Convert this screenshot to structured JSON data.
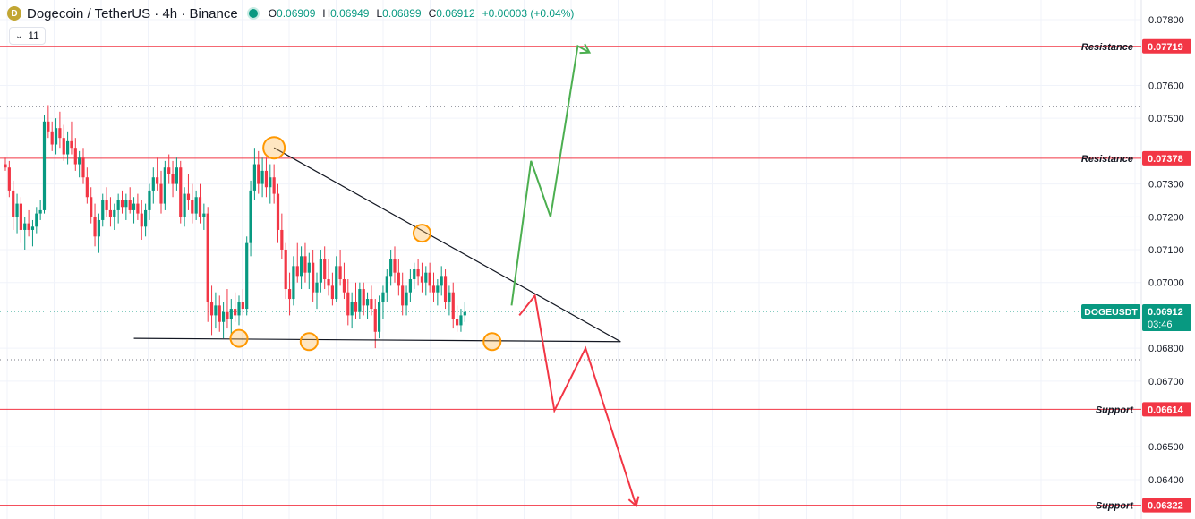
{
  "header": {
    "logo_icon": "dogecoin-logo-icon",
    "title": "Dogecoin / TetherUS · 4h · Binance",
    "ohlc": {
      "o_label": "O",
      "o": "0.06909",
      "h_label": "H",
      "h": "0.06949",
      "l_label": "L",
      "l": "0.06899",
      "c_label": "C",
      "c": "0.06912",
      "change": "+0.00003 (+0.04%)"
    },
    "indicators_count": "11"
  },
  "chart_data": {
    "type": "candlestick",
    "symbol": "DOGEUSDT",
    "last_price": "0.06912",
    "countdown": "03:46",
    "ylim": [
      0.0628,
      0.0786
    ],
    "y_ticks": [
      "0.07800",
      "0.07600",
      "0.07500",
      "0.07300",
      "0.07200",
      "0.07100",
      "0.07000",
      "0.06800",
      "0.06700",
      "0.06500",
      "0.06400"
    ],
    "levels": [
      {
        "label": "Resistance",
        "value": "0.07719"
      },
      {
        "label": "Resistance",
        "value": "0.07378"
      },
      {
        "label": "Support",
        "value": "0.06614"
      },
      {
        "label": "Support",
        "value": "0.06322"
      }
    ],
    "dotted_levels": [
      0.07535,
      0.06765
    ],
    "candles": [
      [
        0.0736,
        0.0738,
        0.0734,
        0.0735
      ],
      [
        0.0735,
        0.0737,
        0.0726,
        0.0728
      ],
      [
        0.0728,
        0.0731,
        0.0716,
        0.072
      ],
      [
        0.072,
        0.0727,
        0.0715,
        0.0724
      ],
      [
        0.0724,
        0.0726,
        0.0712,
        0.0716
      ],
      [
        0.0716,
        0.072,
        0.071,
        0.0718
      ],
      [
        0.0718,
        0.0722,
        0.0714,
        0.0716
      ],
      [
        0.0716,
        0.0719,
        0.0711,
        0.0717
      ],
      [
        0.0717,
        0.0723,
        0.0715,
        0.0721
      ],
      [
        0.0721,
        0.0725,
        0.0719,
        0.0722
      ],
      [
        0.0722,
        0.0751,
        0.0721,
        0.0749
      ],
      [
        0.0749,
        0.0754,
        0.0744,
        0.0746
      ],
      [
        0.0746,
        0.0749,
        0.074,
        0.0742
      ],
      [
        0.0742,
        0.075,
        0.0739,
        0.0747
      ],
      [
        0.0747,
        0.0752,
        0.0741,
        0.0744
      ],
      [
        0.0744,
        0.0748,
        0.0737,
        0.0739
      ],
      [
        0.0739,
        0.0746,
        0.0736,
        0.0743
      ],
      [
        0.0743,
        0.0749,
        0.0739,
        0.0741
      ],
      [
        0.0741,
        0.0744,
        0.0734,
        0.0736
      ],
      [
        0.0736,
        0.074,
        0.0732,
        0.0738
      ],
      [
        0.0738,
        0.0741,
        0.073,
        0.0732
      ],
      [
        0.0732,
        0.0735,
        0.0724,
        0.0726
      ],
      [
        0.0726,
        0.0729,
        0.0718,
        0.072
      ],
      [
        0.072,
        0.0724,
        0.0711,
        0.0714
      ],
      [
        0.0714,
        0.0721,
        0.0709,
        0.0719
      ],
      [
        0.0719,
        0.0727,
        0.0717,
        0.0725
      ],
      [
        0.0725,
        0.0729,
        0.072,
        0.0722
      ],
      [
        0.0722,
        0.0726,
        0.0717,
        0.072
      ],
      [
        0.072,
        0.0724,
        0.0716,
        0.0722
      ],
      [
        0.0722,
        0.0727,
        0.0718,
        0.0725
      ],
      [
        0.0725,
        0.0728,
        0.0721,
        0.0723
      ],
      [
        0.0723,
        0.0727,
        0.0719,
        0.0725
      ],
      [
        0.0725,
        0.0729,
        0.0721,
        0.0722
      ],
      [
        0.0722,
        0.0726,
        0.0718,
        0.0724
      ],
      [
        0.0724,
        0.0727,
        0.0719,
        0.0721
      ],
      [
        0.0721,
        0.0725,
        0.0713,
        0.0717
      ],
      [
        0.0717,
        0.0724,
        0.0714,
        0.0722
      ],
      [
        0.0722,
        0.073,
        0.0719,
        0.0728
      ],
      [
        0.0728,
        0.0735,
        0.0724,
        0.0732
      ],
      [
        0.0732,
        0.0738,
        0.0728,
        0.073
      ],
      [
        0.073,
        0.0734,
        0.0721,
        0.0724
      ],
      [
        0.0724,
        0.0737,
        0.0722,
        0.0735
      ],
      [
        0.0735,
        0.0739,
        0.073,
        0.0733
      ],
      [
        0.0733,
        0.0737,
        0.0726,
        0.073
      ],
      [
        0.073,
        0.0738,
        0.0728,
        0.0735
      ],
      [
        0.0735,
        0.0737,
        0.0718,
        0.072
      ],
      [
        0.072,
        0.0729,
        0.0717,
        0.0727
      ],
      [
        0.0727,
        0.0733,
        0.0722,
        0.0725
      ],
      [
        0.0725,
        0.073,
        0.0718,
        0.0721
      ],
      [
        0.0721,
        0.0728,
        0.0719,
        0.0726
      ],
      [
        0.0726,
        0.073,
        0.0718,
        0.072
      ],
      [
        0.072,
        0.0724,
        0.0716,
        0.0721
      ],
      [
        0.0721,
        0.0723,
        0.0688,
        0.0694
      ],
      [
        0.0694,
        0.0699,
        0.0684,
        0.069
      ],
      [
        0.069,
        0.0697,
        0.0686,
        0.0693
      ],
      [
        0.0693,
        0.0696,
        0.0685,
        0.0688
      ],
      [
        0.0688,
        0.0694,
        0.0683,
        0.0691
      ],
      [
        0.0691,
        0.0698,
        0.0686,
        0.0689
      ],
      [
        0.0689,
        0.0695,
        0.0684,
        0.0692
      ],
      [
        0.0692,
        0.0697,
        0.0688,
        0.069
      ],
      [
        0.069,
        0.0696,
        0.0687,
        0.0694
      ],
      [
        0.0694,
        0.0698,
        0.069,
        0.0692
      ],
      [
        0.0692,
        0.0714,
        0.069,
        0.0712
      ],
      [
        0.0712,
        0.0731,
        0.0708,
        0.0728
      ],
      [
        0.0728,
        0.0741,
        0.0725,
        0.0736
      ],
      [
        0.0736,
        0.074,
        0.0727,
        0.073
      ],
      [
        0.073,
        0.0738,
        0.0726,
        0.0734
      ],
      [
        0.0734,
        0.0738,
        0.0726,
        0.0729
      ],
      [
        0.0729,
        0.0736,
        0.0724,
        0.0732
      ],
      [
        0.0732,
        0.0736,
        0.0724,
        0.0727
      ],
      [
        0.0727,
        0.073,
        0.0712,
        0.0716
      ],
      [
        0.0716,
        0.0721,
        0.0707,
        0.071
      ],
      [
        0.071,
        0.0712,
        0.0695,
        0.0698
      ],
      [
        0.0698,
        0.0703,
        0.069,
        0.0695
      ],
      [
        0.0695,
        0.0708,
        0.0693,
        0.0705
      ],
      [
        0.0705,
        0.0712,
        0.07,
        0.0702
      ],
      [
        0.0702,
        0.0711,
        0.0698,
        0.0708
      ],
      [
        0.0708,
        0.0712,
        0.07,
        0.0703
      ],
      [
        0.0703,
        0.0709,
        0.0698,
        0.0706
      ],
      [
        0.0706,
        0.071,
        0.0694,
        0.0697
      ],
      [
        0.0697,
        0.0703,
        0.0692,
        0.07
      ],
      [
        0.07,
        0.071,
        0.0697,
        0.0707
      ],
      [
        0.0707,
        0.0711,
        0.0698,
        0.0701
      ],
      [
        0.0701,
        0.0707,
        0.0696,
        0.0699
      ],
      [
        0.0699,
        0.0703,
        0.0693,
        0.0695
      ],
      [
        0.0695,
        0.0708,
        0.0694,
        0.0705
      ],
      [
        0.0705,
        0.071,
        0.0699,
        0.0701
      ],
      [
        0.0701,
        0.0706,
        0.0695,
        0.0697
      ],
      [
        0.0697,
        0.0701,
        0.0687,
        0.069
      ],
      [
        0.069,
        0.0697,
        0.0686,
        0.0694
      ],
      [
        0.0694,
        0.07,
        0.0689,
        0.0691
      ],
      [
        0.0691,
        0.07,
        0.0689,
        0.0698
      ],
      [
        0.0698,
        0.07,
        0.069,
        0.0693
      ],
      [
        0.0693,
        0.0697,
        0.0689,
        0.0695
      ],
      [
        0.0695,
        0.0699,
        0.069,
        0.0692
      ],
      [
        0.0692,
        0.0695,
        0.068,
        0.0685
      ],
      [
        0.0685,
        0.0696,
        0.0683,
        0.0694
      ],
      [
        0.0694,
        0.0699,
        0.0689,
        0.0697
      ],
      [
        0.0697,
        0.0704,
        0.0694,
        0.0702
      ],
      [
        0.0702,
        0.071,
        0.0699,
        0.0707
      ],
      [
        0.0707,
        0.0711,
        0.07,
        0.0703
      ],
      [
        0.0703,
        0.0707,
        0.0696,
        0.0699
      ],
      [
        0.0699,
        0.0703,
        0.069,
        0.0693
      ],
      [
        0.0693,
        0.0699,
        0.069,
        0.0697
      ],
      [
        0.0697,
        0.0704,
        0.0694,
        0.0701
      ],
      [
        0.0701,
        0.0706,
        0.0698,
        0.0704
      ],
      [
        0.0704,
        0.0707,
        0.0699,
        0.0702
      ],
      [
        0.0702,
        0.0706,
        0.0697,
        0.07
      ],
      [
        0.07,
        0.0705,
        0.0696,
        0.0703
      ],
      [
        0.0703,
        0.0706,
        0.0697,
        0.0699
      ],
      [
        0.0699,
        0.0703,
        0.0694,
        0.0697
      ],
      [
        0.0697,
        0.0701,
        0.0693,
        0.0699
      ],
      [
        0.0699,
        0.0705,
        0.0696,
        0.0702
      ],
      [
        0.0702,
        0.0704,
        0.0692,
        0.0694
      ],
      [
        0.0694,
        0.0699,
        0.069,
        0.0697
      ],
      [
        0.0697,
        0.07,
        0.0686,
        0.0689
      ],
      [
        0.0689,
        0.0693,
        0.0685,
        0.0687
      ],
      [
        0.0687,
        0.0692,
        0.0685,
        0.069
      ],
      [
        0.069,
        0.0694,
        0.0688,
        0.0691
      ]
    ],
    "annotations": {
      "descending_trendline": [
        [
          69,
          0.0741
        ],
        [
          158,
          0.0682
        ]
      ],
      "support_trendline": [
        [
          33,
          0.0683
        ],
        [
          158,
          0.0682
        ]
      ],
      "touch_points": [
        [
          69,
          0.0741
        ],
        [
          60,
          0.0683
        ],
        [
          78,
          0.0682
        ],
        [
          107,
          0.0715
        ],
        [
          125,
          0.0682
        ]
      ],
      "bullish_path": [
        [
          130,
          0.0693
        ],
        [
          135,
          0.0737
        ],
        [
          140,
          0.072
        ],
        [
          147,
          0.0772
        ],
        [
          150,
          0.077
        ]
      ],
      "bearish_path": [
        [
          132,
          0.069
        ],
        [
          136,
          0.0696
        ],
        [
          141,
          0.0661
        ],
        [
          149,
          0.068
        ],
        [
          162,
          0.0632
        ]
      ]
    }
  }
}
